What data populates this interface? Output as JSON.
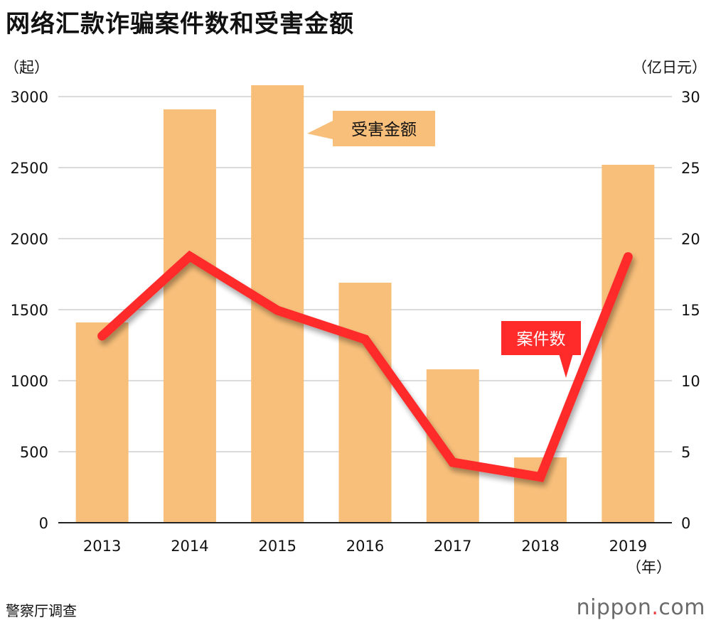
{
  "header": {
    "title": "网络汇款诈骗案件数和受害金额"
  },
  "footer": {
    "source": "警察厅调查",
    "brand_main": "nippon",
    "brand_dot": ".",
    "brand_tld": "com"
  },
  "chart_data": {
    "type": "bar+line",
    "title": "网络汇款诈骗案件数和受害金额",
    "categories": [
      "2013",
      "2014",
      "2015",
      "2016",
      "2017",
      "2018",
      "2019"
    ],
    "x_unit": "（年）",
    "left_axis": {
      "unit": "（起）",
      "range": [
        0,
        3000
      ],
      "ticks": [
        0,
        500,
        1000,
        1500,
        2000,
        2500,
        3000
      ]
    },
    "right_axis": {
      "unit": "（亿日元）",
      "range": [
        0,
        30
      ],
      "ticks": [
        0,
        5,
        10,
        15,
        20,
        25,
        30
      ]
    },
    "series": [
      {
        "name": "受害金额",
        "kind": "bar",
        "axis": "right",
        "color": "#f8bf7a",
        "values": [
          14.1,
          29.1,
          30.8,
          16.9,
          10.8,
          4.6,
          25.2
        ]
      },
      {
        "name": "案件数",
        "kind": "line",
        "axis": "left",
        "color": "#ff2a2a",
        "values": [
          1315,
          1876,
          1495,
          1291,
          425,
          322,
          1872
        ]
      }
    ],
    "grid": true
  }
}
